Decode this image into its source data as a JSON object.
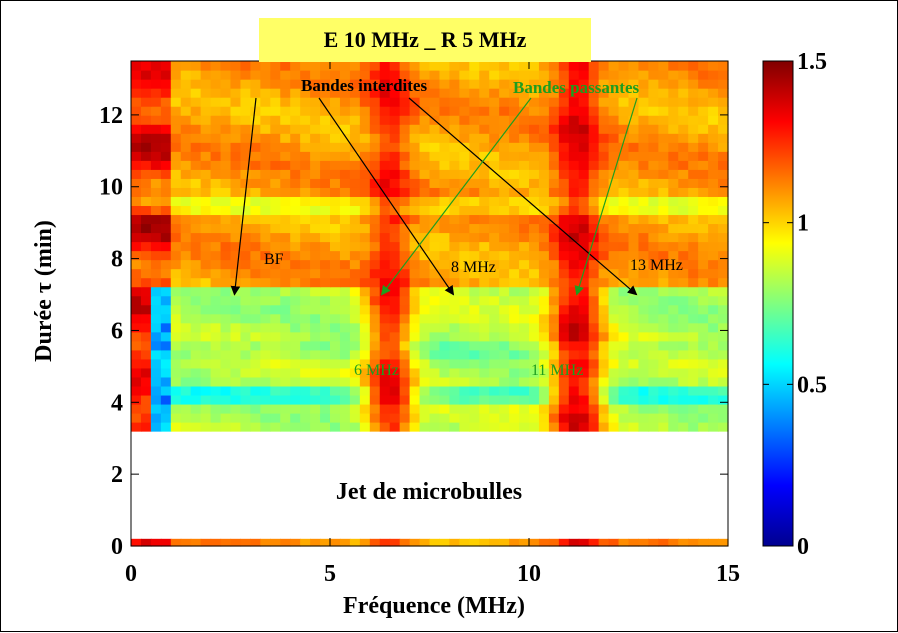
{
  "chart_data": {
    "type": "heatmap",
    "title": "E 10 MHz _ R 5 MHz",
    "xlabel": "Fréquence (MHz)",
    "ylabel": "Durée τ (min)",
    "xlim": [
      0,
      15
    ],
    "ylim": [
      0,
      13.5
    ],
    "xticks": [
      0,
      5,
      10,
      15
    ],
    "yticks": [
      0,
      2,
      4,
      6,
      8,
      10,
      12
    ],
    "colorbar": {
      "min": 0,
      "max": 1.5,
      "ticks": [
        0,
        0.5,
        1,
        1.5
      ],
      "colormap": "jet"
    },
    "data_rows": [
      {
        "tau_range": [
          0,
          0.2
        ],
        "description": "single measurement row"
      },
      {
        "tau_range": [
          3.2,
          13.5
        ],
        "description": "spectrogram region"
      }
    ],
    "gap_label": "Jet de microbulles",
    "annotations": {
      "bandes_interdites": "Bandes interdites",
      "bandes_passantes": "Bandes passantes",
      "bf": "BF",
      "f8": "8 MHz",
      "f13": "13 MHz",
      "f6": "6 MHz",
      "f11": "11 MHz"
    },
    "annotation_colors": {
      "interdites": "#000000",
      "passantes": "#1e9e1e"
    },
    "pass_bands_mhz": [
      6.5,
      11.2
    ],
    "stop_bands_mhz": [
      2.6,
      8.1,
      12.7
    ],
    "stop_band_time_range": [
      3.2,
      7.2
    ]
  }
}
